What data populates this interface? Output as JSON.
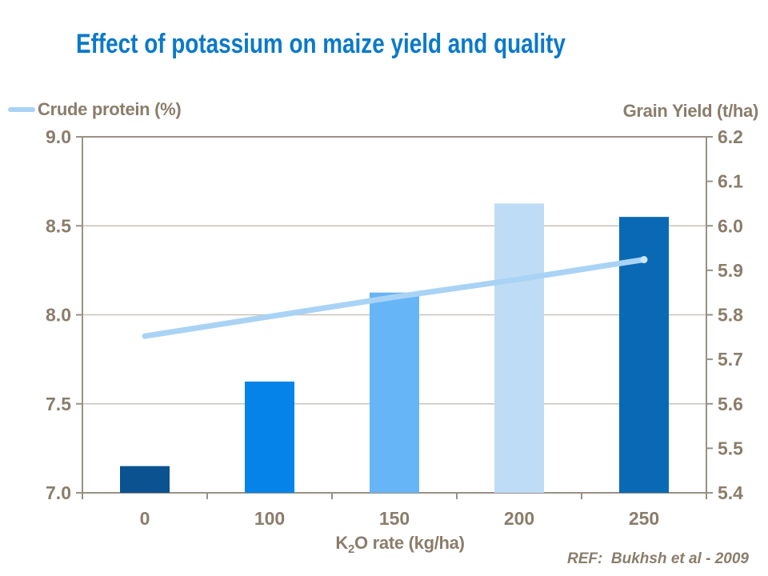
{
  "title": "Effect of potassium on maize yield and quality",
  "ref_note": "REF:  Bukhsh et al - 2009",
  "colors": {
    "title_blue": "#0B79C9",
    "label_taupe": "#8B7D6B",
    "axis_line": "#9A9086",
    "gridline": "#CAC2B9",
    "background": "#FFFFFF"
  },
  "chart_data": {
    "type": "bar",
    "subtype": "combo bar+line, dual axis",
    "title": "Effect of potassium on maize yield and quality",
    "categories": [
      "0",
      "100",
      "150",
      "200",
      "250"
    ],
    "series": [
      {
        "name": "Grain Yield (t/ha)",
        "type": "bar",
        "axis": "right",
        "values": [
          5.46,
          5.65,
          5.85,
          6.05,
          6.02
        ],
        "bar_colors": [
          "#0B5291",
          "#0583E8",
          "#66B5F6",
          "#BFDCF6",
          "#0A69B4"
        ]
      },
      {
        "name": "Crude protein (%)",
        "type": "line",
        "axis": "left",
        "values": [
          7.88,
          7.99,
          8.1,
          8.2,
          8.31
        ],
        "color": "#A9D3F5",
        "endpoint_color": "#CDE6FA"
      }
    ],
    "left_axis": {
      "title": "Crude protein (%)",
      "min": 7.0,
      "max": 9.0,
      "tick_labels": [
        "9.0",
        "8.5",
        "8.0",
        "7.5",
        "7.0"
      ]
    },
    "right_axis": {
      "title": "Grain Yield (t/ha)",
      "min": 5.4,
      "max": 6.2,
      "tick_labels": [
        "6.2",
        "6.1",
        "6.0",
        "5.9",
        "5.8",
        "5.7",
        "5.6",
        "5.5",
        "5.4"
      ]
    },
    "x_axis": {
      "title": "K2O rate (kg/ha)",
      "title_parts": {
        "pre": "K",
        "sub": "2",
        "post": "O rate (kg/ha)"
      }
    },
    "grid": true,
    "legend_position": "top-left"
  }
}
